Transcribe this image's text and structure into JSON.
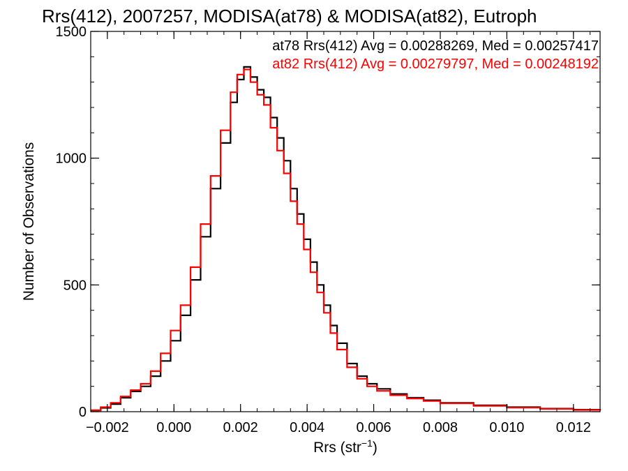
{
  "chart_data": {
    "type": "line",
    "title": "Rrs(412), 2007257, MODISA(at78) & MODISA(at82), Eutroph",
    "xlabel": "Rrs (str",
    "xlabel_sup": "−1",
    "xlabel_suffix": ")",
    "ylabel": "Number of Observations",
    "xlim": [
      -0.0025,
      0.0128
    ],
    "ylim": [
      0,
      1500
    ],
    "xticks": [
      -0.002,
      0.0,
      0.002,
      0.004,
      0.006,
      0.008,
      0.01,
      0.012
    ],
    "xtick_labels": [
      "−0.002",
      "0.000",
      "0.002",
      "0.004",
      "0.006",
      "0.008",
      "0.010",
      "0.012"
    ],
    "yticks": [
      0,
      500,
      1000,
      1500
    ],
    "ytick_labels": [
      "0",
      "500",
      "1000",
      "1500"
    ],
    "grid": false,
    "legend_position": "top-right",
    "series": [
      {
        "name": "at78",
        "color": "#000000",
        "label": "at78 Rrs(412) Avg = 0.00288269, Med = 0.00257417",
        "x": [
          -0.0025,
          -0.0022,
          -0.0019,
          -0.0016,
          -0.0013,
          -0.001,
          -0.0007,
          -0.0004,
          -0.0001,
          0.0002,
          0.0005,
          0.0008,
          0.0011,
          0.0014,
          0.0017,
          0.0019,
          0.0021,
          0.0023,
          0.0025,
          0.0027,
          0.0029,
          0.0031,
          0.0033,
          0.0035,
          0.0037,
          0.0039,
          0.0041,
          0.0043,
          0.0045,
          0.0047,
          0.0049,
          0.0052,
          0.0055,
          0.0058,
          0.0061,
          0.0065,
          0.007,
          0.0075,
          0.008,
          0.009,
          0.01,
          0.011,
          0.012,
          0.0128
        ],
        "y": [
          5,
          15,
          30,
          55,
          80,
          100,
          140,
          200,
          280,
          380,
          520,
          690,
          880,
          1060,
          1220,
          1310,
          1360,
          1320,
          1270,
          1240,
          1160,
          1080,
          990,
          880,
          780,
          680,
          590,
          500,
          420,
          340,
          270,
          190,
          140,
          110,
          90,
          70,
          55,
          45,
          35,
          25,
          18,
          12,
          8,
          5
        ]
      },
      {
        "name": "at82",
        "color": "#ff0000",
        "label": "at82 Rrs(412) Avg = 0.00279797, Med = 0.00248192",
        "x": [
          -0.0025,
          -0.0022,
          -0.0019,
          -0.0016,
          -0.0013,
          -0.001,
          -0.0007,
          -0.0004,
          -0.0001,
          0.0002,
          0.0005,
          0.0008,
          0.0011,
          0.0014,
          0.0017,
          0.0019,
          0.0021,
          0.0023,
          0.0025,
          0.0027,
          0.0029,
          0.0031,
          0.0033,
          0.0035,
          0.0037,
          0.0039,
          0.0041,
          0.0043,
          0.0045,
          0.0047,
          0.0049,
          0.0052,
          0.0055,
          0.0058,
          0.0061,
          0.0065,
          0.007,
          0.0075,
          0.008,
          0.009,
          0.01,
          0.011,
          0.012,
          0.0128
        ],
        "y": [
          6,
          18,
          35,
          60,
          85,
          110,
          160,
          230,
          320,
          420,
          570,
          740,
          930,
          1110,
          1260,
          1330,
          1350,
          1300,
          1250,
          1210,
          1120,
          1030,
          940,
          830,
          740,
          640,
          550,
          470,
          390,
          310,
          245,
          175,
          130,
          100,
          82,
          65,
          52,
          42,
          33,
          23,
          16,
          11,
          7,
          4
        ]
      }
    ]
  }
}
